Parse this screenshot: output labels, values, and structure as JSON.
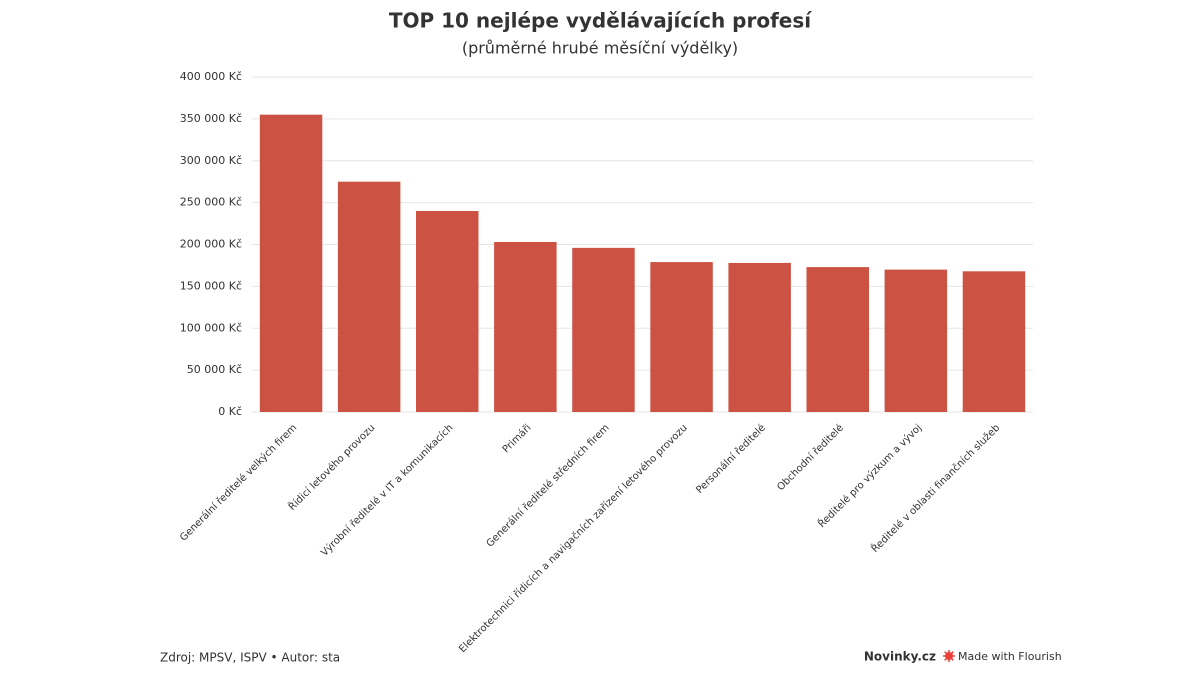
{
  "chart_data": {
    "type": "bar",
    "title": "TOP 10 nejlépe vydělávajících profesí",
    "subtitle": "(průměrné hrubé měsíční výdělky)",
    "categories": [
      "Generální ředitelé velkých firem",
      "Řídicí letového provozu",
      "Výrobní ředitelé v IT a komunikacích",
      "Primáři",
      "Generální ředitelé středních firem",
      "Elektrotechnici řídicích a navigačních zařízení letového provozu",
      "Personální ředitelé",
      "Obchodní ředitelé",
      "Ředitelé pro výzkum a vývoj",
      "Ředitelé v oblasti finančních služeb"
    ],
    "values": [
      355000,
      275000,
      240000,
      203000,
      196000,
      179000,
      178000,
      173000,
      170000,
      168000
    ],
    "color": "#cc5243",
    "ylim": [
      0,
      400000
    ],
    "yticks": [
      {
        "value": 0,
        "label": "0 Kč"
      },
      {
        "value": 50000,
        "label": "50 000 Kč"
      },
      {
        "value": 100000,
        "label": "100 000 Kč"
      },
      {
        "value": 150000,
        "label": "150 000 Kč"
      },
      {
        "value": 200000,
        "label": "200 000 Kč"
      },
      {
        "value": 250000,
        "label": "250 000 Kč"
      },
      {
        "value": 300000,
        "label": "300 000 Kč"
      },
      {
        "value": 350000,
        "label": "350 000 Kč"
      },
      {
        "value": 400000,
        "label": "400 000 Kč"
      }
    ],
    "grid": true
  },
  "footer": {
    "source": "Zdroj: MPSV, ISPV • Autor: sta",
    "brand": "Novinky.cz",
    "credit": "Made with Flourish"
  }
}
